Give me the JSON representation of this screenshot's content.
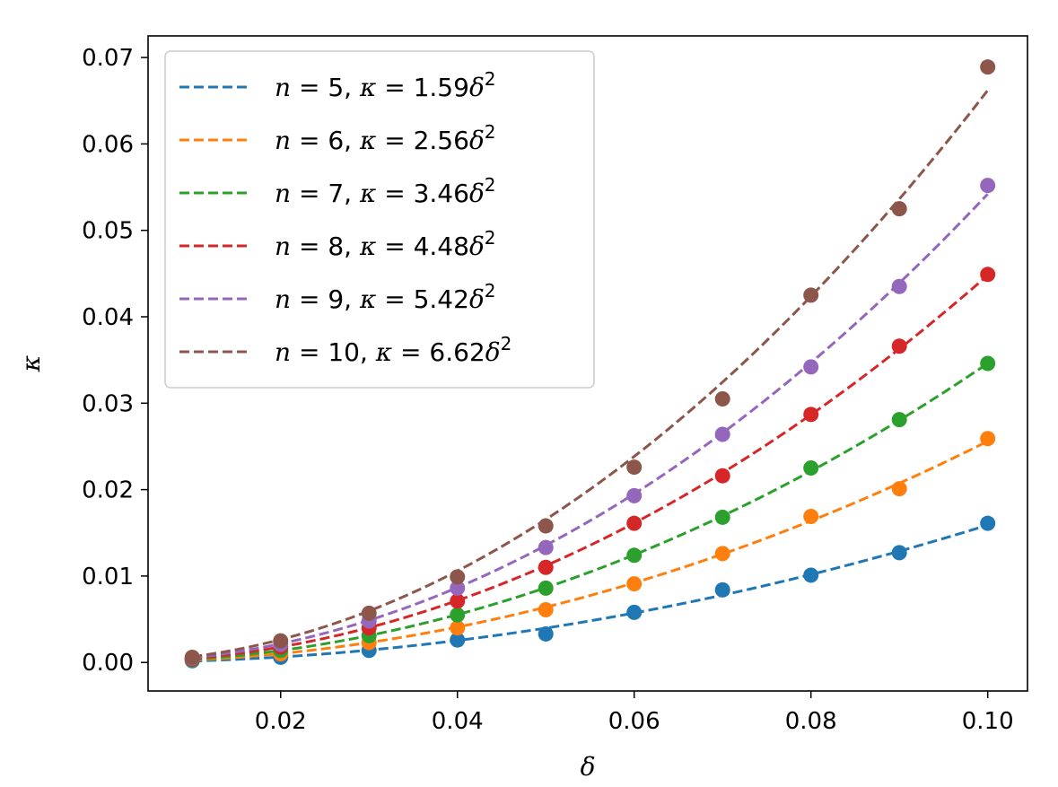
{
  "chart_data": {
    "type": "line",
    "title": "",
    "xlabel": "δ",
    "ylabel": "κ",
    "xlim": [
      0.005,
      0.1045
    ],
    "ylim": [
      -0.0033,
      0.0725
    ],
    "xticks": [
      0.02,
      0.04,
      0.06,
      0.08,
      0.1
    ],
    "xtick_labels": [
      "0.02",
      "0.04",
      "0.06",
      "0.08",
      "0.10"
    ],
    "yticks": [
      0.0,
      0.01,
      0.02,
      0.03,
      0.04,
      0.05,
      0.06,
      0.07
    ],
    "ytick_labels": [
      "0.00",
      "0.01",
      "0.02",
      "0.03",
      "0.04",
      "0.05",
      "0.06",
      "0.07"
    ],
    "grid": false,
    "legend_position": "top-left",
    "x": [
      0.01,
      0.02,
      0.03,
      0.04,
      0.05,
      0.06,
      0.07,
      0.08,
      0.09,
      0.1
    ],
    "series": [
      {
        "name": "n = 5, κ = 1.59δ²",
        "n": "5",
        "coef": "1.59",
        "color": "#1f77b4",
        "fit_coefficient": 1.59,
        "points": [
          0.0002,
          0.0006,
          0.0014,
          0.0026,
          0.0033,
          0.0058,
          0.0084,
          0.0101,
          0.0127,
          0.0161
        ]
      },
      {
        "name": "n = 6, κ = 2.56δ²",
        "n": "6",
        "coef": "2.56",
        "color": "#ff7f0e",
        "fit_coefficient": 2.56,
        "points": [
          0.0003,
          0.001,
          0.0023,
          0.004,
          0.0061,
          0.0091,
          0.0126,
          0.0169,
          0.0201,
          0.0259
        ]
      },
      {
        "name": "n = 7, κ = 3.46δ²",
        "n": "7",
        "coef": "3.46",
        "color": "#2ca02c",
        "fit_coefficient": 3.46,
        "points": [
          0.0003,
          0.0014,
          0.0031,
          0.0055,
          0.0086,
          0.0124,
          0.0168,
          0.0225,
          0.0281,
          0.0346
        ]
      },
      {
        "name": "n = 8, κ = 4.48δ²",
        "n": "8",
        "coef": "4.48",
        "color": "#d62728",
        "fit_coefficient": 4.48,
        "points": [
          0.0004,
          0.0018,
          0.004,
          0.0071,
          0.011,
          0.0161,
          0.0216,
          0.0287,
          0.0366,
          0.0449
        ]
      },
      {
        "name": "n = 9, κ = 5.42δ²",
        "n": "9",
        "coef": "5.42",
        "color": "#9467bd",
        "fit_coefficient": 5.42,
        "points": [
          0.0005,
          0.0021,
          0.0048,
          0.0086,
          0.0133,
          0.0193,
          0.0264,
          0.0342,
          0.0435,
          0.0552
        ]
      },
      {
        "name": "n = 10, κ = 6.62δ²",
        "n": "10",
        "coef": "6.62",
        "color": "#8c564b",
        "fit_coefficient": 6.62,
        "points": [
          0.0006,
          0.0025,
          0.0057,
          0.0099,
          0.0158,
          0.0226,
          0.0305,
          0.0425,
          0.0525,
          0.0689
        ]
      }
    ]
  }
}
